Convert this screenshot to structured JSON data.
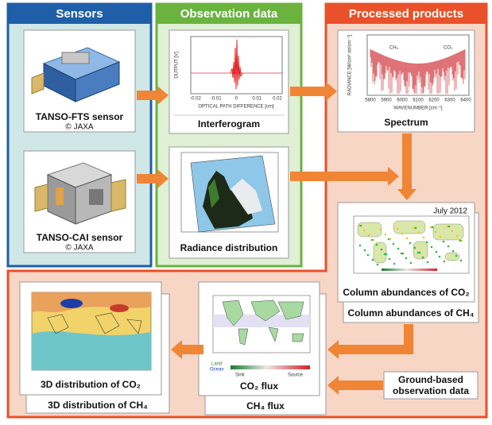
{
  "sensors": {
    "title": "Sensors",
    "items": [
      {
        "label": "TANSO-FTS sensor",
        "credit": "© JAXA"
      },
      {
        "label": "TANSO-CAI sensor",
        "credit": "© JAXA"
      }
    ]
  },
  "observation": {
    "title": "Observation data",
    "items": [
      {
        "label": "Interferogram"
      },
      {
        "label": "Radiance distribution"
      }
    ]
  },
  "processed": {
    "title": "Processed products",
    "spectrum": {
      "label": "Spectrum"
    },
    "column": {
      "front": "Column abundances of CO₂",
      "back": "Column abundances of CH₄",
      "date": "July 2012"
    },
    "distribution": {
      "front": "3D distribution of CO₂",
      "back": "3D distribution of CH₄"
    },
    "flux": {
      "front": "CO₂ flux",
      "back": "CH₄ flux",
      "legend": [
        "Land",
        "Ocean",
        "Sink",
        "Source"
      ]
    },
    "ground": [
      "Ground-based",
      "observation data"
    ]
  },
  "interferogram_plot": {
    "y_label": "OUTPUT [V]",
    "x_label": "OPTICAL PATH DIFFERENCE [cm]",
    "x_ticks": [
      "-0.02",
      "-0.01",
      "0",
      "0.01",
      "0.02"
    ]
  },
  "spectrum_plot": {
    "y_label": "RADIANCE [W/cm² str/cm⁻¹]",
    "x_label": "WAVENUMBER [cm⁻¹]",
    "x_ticks": [
      "5800",
      "5900",
      "6000",
      "6100",
      "6200",
      "6300",
      "6400"
    ],
    "species": [
      "CH₄",
      "CO₂"
    ]
  }
}
